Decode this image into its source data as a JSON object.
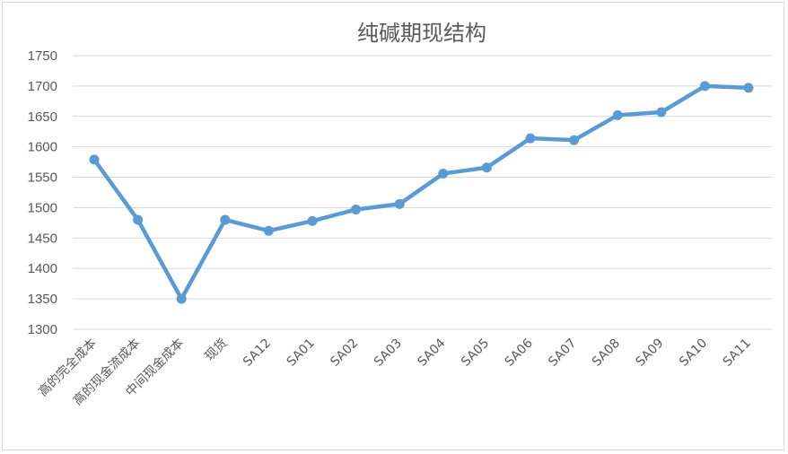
{
  "chart_data": {
    "type": "line",
    "title": "纯碱期现结构",
    "categories": [
      "高的完全成本",
      "高的现金流成本",
      "中间现金成本",
      "现货",
      "SA12",
      "SA01",
      "SA02",
      "SA03",
      "SA04",
      "SA05",
      "SA06",
      "SA07",
      "SA08",
      "SA09",
      "SA10",
      "SA11"
    ],
    "series": [
      {
        "values": [
          1579,
          1480,
          1350,
          1480,
          1462,
          1478,
          1497,
          1506,
          1556,
          1566,
          1614,
          1611,
          1652,
          1657,
          1700,
          1697
        ]
      }
    ],
    "yticks": [
      "1300",
      "1350",
      "1400",
      "1450",
      "1500",
      "1550",
      "1600",
      "1650",
      "1700",
      "1750"
    ],
    "ylim": [
      1300,
      1750
    ],
    "grid": true,
    "legend": "none",
    "colors": {
      "line": "#5b9bd5",
      "grid": "#d9d9d9",
      "text": "#595959"
    }
  }
}
